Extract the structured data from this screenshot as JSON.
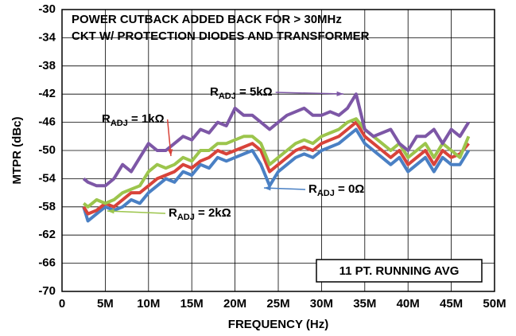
{
  "chart_data": {
    "type": "line",
    "xlabel": "FREQUENCY (Hz)",
    "ylabel": "MTPR (dBc)",
    "annotations": [
      "POWER CUTBACK ADDED BACK FOR > 30MHz",
      "CKT W/ PROTECTION DIODES AND TRANSFORMER",
      "11 PT. RUNNING AVG"
    ],
    "xlim": [
      0,
      50000000
    ],
    "ylim": [
      -70,
      -30
    ],
    "xticks": [
      0,
      {
        "value": 5000000,
        "label": "5M"
      },
      {
        "value": 10000000,
        "label": "10M"
      },
      {
        "value": 15000000,
        "label": "15M"
      },
      {
        "value": 20000000,
        "label": "20M"
      },
      {
        "value": 25000000,
        "label": "25M"
      },
      {
        "value": 30000000,
        "label": "30M"
      },
      {
        "value": 35000000,
        "label": "35M"
      },
      {
        "value": 40000000,
        "label": "40M"
      },
      {
        "value": 45000000,
        "label": "45M"
      },
      {
        "value": 50000000,
        "label": "50M"
      }
    ],
    "yticks": [
      -70,
      -66,
      -62,
      -58,
      -54,
      -50,
      -46,
      -42,
      -38,
      -34,
      -30
    ],
    "grid": true,
    "x": [
      2500000,
      3000000,
      4000000,
      5000000,
      6000000,
      7000000,
      8000000,
      9000000,
      10000000,
      11000000,
      12000000,
      13000000,
      14000000,
      15000000,
      16000000,
      17000000,
      18000000,
      19000000,
      20000000,
      21000000,
      22000000,
      23000000,
      24000000,
      25000000,
      26000000,
      27000000,
      28000000,
      29000000,
      30000000,
      31000000,
      32000000,
      33000000,
      34000000,
      35000000,
      36000000,
      37000000,
      38000000,
      39000000,
      40000000,
      41000000,
      42000000,
      43000000,
      44000000,
      45000000,
      46000000,
      47000000
    ],
    "series": [
      {
        "name": "RADJ = 0Ω",
        "color": "#4a80c4",
        "values": [
          -58,
          -60,
          -59,
          -58,
          -58.5,
          -58,
          -57,
          -57.5,
          -56,
          -55,
          -54,
          -54.5,
          -53,
          -53.5,
          -52,
          -52.5,
          -51,
          -51.5,
          -51,
          -50.5,
          -50,
          -52,
          -55,
          -53,
          -52,
          -51,
          -50.5,
          -51,
          -50,
          -49.5,
          -49,
          -48,
          -47,
          -49,
          -50,
          -51,
          -52,
          -51,
          -53,
          -52,
          -51,
          -53,
          -51,
          -52,
          -52,
          -50
        ]
      },
      {
        "name": "RADJ = 1kΩ",
        "color": "#d8433a",
        "values": [
          -58,
          -59,
          -58.5,
          -57.5,
          -58,
          -57,
          -56,
          -56,
          -55,
          -54,
          -53.5,
          -53,
          -52,
          -52.5,
          -51.5,
          -51,
          -50,
          -50.5,
          -50,
          -49.5,
          -49,
          -50,
          -53,
          -52,
          -51,
          -50,
          -49.5,
          -50,
          -49,
          -48.5,
          -48,
          -47,
          -46,
          -48,
          -49,
          -50,
          -51,
          -50,
          -52,
          -51,
          -50,
          -52,
          -50,
          -51,
          -50.5,
          -49
        ]
      },
      {
        "name": "RADJ = 2kΩ",
        "color": "#9cc54c",
        "values": [
          -57.5,
          -58,
          -57,
          -57.5,
          -57,
          -56,
          -55.5,
          -55,
          -53,
          -52,
          -52.5,
          -52,
          -51,
          -51.5,
          -50,
          -50,
          -49,
          -49,
          -48.5,
          -48,
          -48,
          -49,
          -52,
          -51,
          -50,
          -49,
          -48.5,
          -49,
          -48,
          -47.5,
          -47,
          -46,
          -45.5,
          -47,
          -48,
          -49,
          -50,
          -49,
          -51,
          -50,
          -49,
          -51,
          -49,
          -50,
          -51,
          -48
        ]
      },
      {
        "name": "RADJ = 5kΩ",
        "color": "#7d57a6",
        "values": [
          -54,
          -54.5,
          -55,
          -55,
          -54,
          -52,
          -53,
          -51,
          -49,
          -50,
          -50,
          -49,
          -48,
          -48.5,
          -47,
          -47.5,
          -46,
          -46.5,
          -44,
          -45,
          -45,
          -46,
          -47,
          -46,
          -45,
          -44.5,
          -44,
          -45,
          -45,
          -44.5,
          -45,
          -44,
          -42,
          -47,
          -48,
          -47.5,
          -47,
          -49,
          -50,
          -48,
          -48,
          -47,
          -49,
          -47,
          -48,
          -46
        ]
      }
    ]
  }
}
